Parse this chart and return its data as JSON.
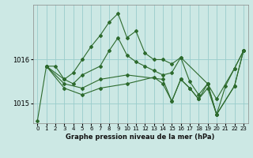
{
  "xlabel": "Graphe pression niveau de la mer (hPa)",
  "bg_color": "#cce8e4",
  "grid_color": "#99cccc",
  "line_color": "#2d6a2d",
  "xlim": [
    -0.5,
    23.5
  ],
  "ylim": [
    1014.55,
    1017.25
  ],
  "yticks": [
    1015,
    1016
  ],
  "xticks": [
    0,
    1,
    2,
    3,
    4,
    5,
    6,
    7,
    8,
    9,
    10,
    11,
    12,
    13,
    14,
    15,
    16,
    17,
    18,
    19,
    20,
    21,
    22,
    23
  ],
  "series": [
    {
      "x": [
        0,
        1,
        2,
        3,
        4,
        5,
        6,
        7,
        8,
        9,
        10,
        11,
        12,
        13,
        14,
        15,
        16,
        17,
        18,
        19,
        20,
        21,
        22,
        23
      ],
      "y": [
        1014.6,
        1015.85,
        1015.85,
        1015.55,
        1015.7,
        1016.0,
        1016.3,
        1016.55,
        1016.85,
        1017.05,
        1016.5,
        1016.65,
        1016.15,
        1016.0,
        1016.0,
        1015.9,
        1016.05,
        1015.5,
        1015.2,
        1015.45,
        1014.75,
        1015.4,
        1015.8,
        1016.2
      ]
    },
    {
      "x": [
        1,
        3,
        4,
        5,
        7,
        8,
        9,
        10,
        11,
        12,
        13,
        14,
        15,
        16,
        19,
        20,
        22,
        23
      ],
      "y": [
        1015.85,
        1015.55,
        1015.45,
        1015.65,
        1015.85,
        1016.2,
        1016.5,
        1016.1,
        1015.95,
        1015.85,
        1015.75,
        1015.65,
        1015.7,
        1016.05,
        1015.45,
        1015.1,
        1015.8,
        1016.2
      ]
    },
    {
      "x": [
        1,
        3,
        5,
        7,
        10,
        14,
        15,
        16,
        17,
        18,
        19,
        20,
        22,
        23
      ],
      "y": [
        1015.85,
        1015.45,
        1015.35,
        1015.55,
        1015.65,
        1015.55,
        1015.05,
        1015.55,
        1015.35,
        1015.1,
        1015.45,
        1014.75,
        1015.4,
        1016.2
      ]
    },
    {
      "x": [
        1,
        3,
        5,
        7,
        10,
        13,
        14,
        15,
        16,
        17,
        18,
        19,
        20,
        22,
        23
      ],
      "y": [
        1015.85,
        1015.35,
        1015.2,
        1015.35,
        1015.45,
        1015.6,
        1015.45,
        1015.05,
        1015.55,
        1015.35,
        1015.1,
        1015.35,
        1014.75,
        1015.4,
        1016.2
      ]
    }
  ]
}
